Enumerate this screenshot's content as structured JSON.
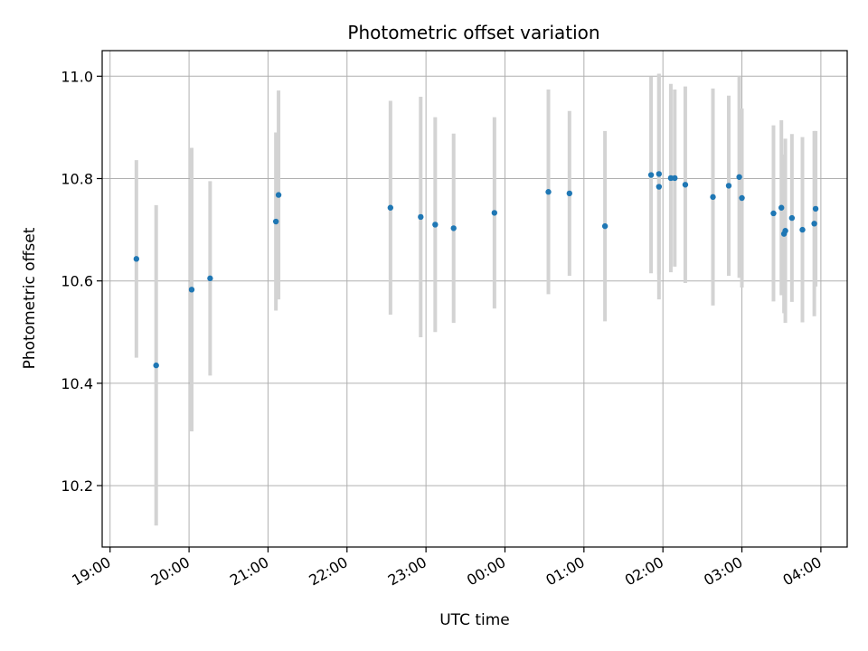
{
  "chart_data": {
    "type": "scatter",
    "title": "Photometric offset variation",
    "xlabel": "UTC time",
    "ylabel": "Photometric offset",
    "x_axis_type": "time",
    "x_ticks": [
      "19:00",
      "20:00",
      "21:00",
      "22:00",
      "23:00",
      "00:00",
      "01:00",
      "02:00",
      "03:00",
      "04:00"
    ],
    "xlim": [
      "18:54",
      "04:20"
    ],
    "y_ticks": [
      10.2,
      10.4,
      10.6,
      10.8,
      11.0
    ],
    "ylim": [
      10.08,
      11.05
    ],
    "grid": true,
    "marker_color": "#1f77b4",
    "errorbar_color": "#d3d3d3",
    "points": [
      {
        "t": "19:20",
        "y": 10.643,
        "err": 0.193
      },
      {
        "t": "19:35",
        "y": 10.435,
        "err": 0.313
      },
      {
        "t": "20:02",
        "y": 10.583,
        "err": 0.277
      },
      {
        "t": "20:16",
        "y": 10.605,
        "err": 0.19
      },
      {
        "t": "21:06",
        "y": 10.716,
        "err": 0.174
      },
      {
        "t": "21:08",
        "y": 10.768,
        "err": 0.204
      },
      {
        "t": "22:33",
        "y": 10.743,
        "err": 0.209
      },
      {
        "t": "22:56",
        "y": 10.725,
        "err": 0.235
      },
      {
        "t": "23:07",
        "y": 10.71,
        "err": 0.21
      },
      {
        "t": "23:21",
        "y": 10.703,
        "err": 0.185
      },
      {
        "t": "23:52",
        "y": 10.733,
        "err": 0.187
      },
      {
        "t": "00:33",
        "y": 10.774,
        "err": 0.2
      },
      {
        "t": "00:49",
        "y": 10.771,
        "err": 0.161
      },
      {
        "t": "01:16",
        "y": 10.707,
        "err": 0.186
      },
      {
        "t": "01:51",
        "y": 10.807,
        "err": 0.192
      },
      {
        "t": "01:57",
        "y": 10.784,
        "err": 0.22
      },
      {
        "t": "01:57",
        "y": 10.809,
        "err": 0.196
      },
      {
        "t": "02:06",
        "y": 10.801,
        "err": 0.184
      },
      {
        "t": "02:09",
        "y": 10.801,
        "err": 0.173
      },
      {
        "t": "02:17",
        "y": 10.788,
        "err": 0.192
      },
      {
        "t": "02:38",
        "y": 10.764,
        "err": 0.212
      },
      {
        "t": "02:50",
        "y": 10.786,
        "err": 0.176
      },
      {
        "t": "02:58",
        "y": 10.803,
        "err": 0.197
      },
      {
        "t": "03:00",
        "y": 10.762,
        "err": 0.175
      },
      {
        "t": "03:24",
        "y": 10.732,
        "err": 0.172
      },
      {
        "t": "03:30",
        "y": 10.743,
        "err": 0.171
      },
      {
        "t": "03:32",
        "y": 10.692,
        "err": 0.155
      },
      {
        "t": "03:33",
        "y": 10.698,
        "err": 0.18
      },
      {
        "t": "03:38",
        "y": 10.723,
        "err": 0.164
      },
      {
        "t": "03:46",
        "y": 10.7,
        "err": 0.181
      },
      {
        "t": "03:55",
        "y": 10.712,
        "err": 0.181
      },
      {
        "t": "03:56",
        "y": 10.741,
        "err": 0.152
      }
    ]
  }
}
